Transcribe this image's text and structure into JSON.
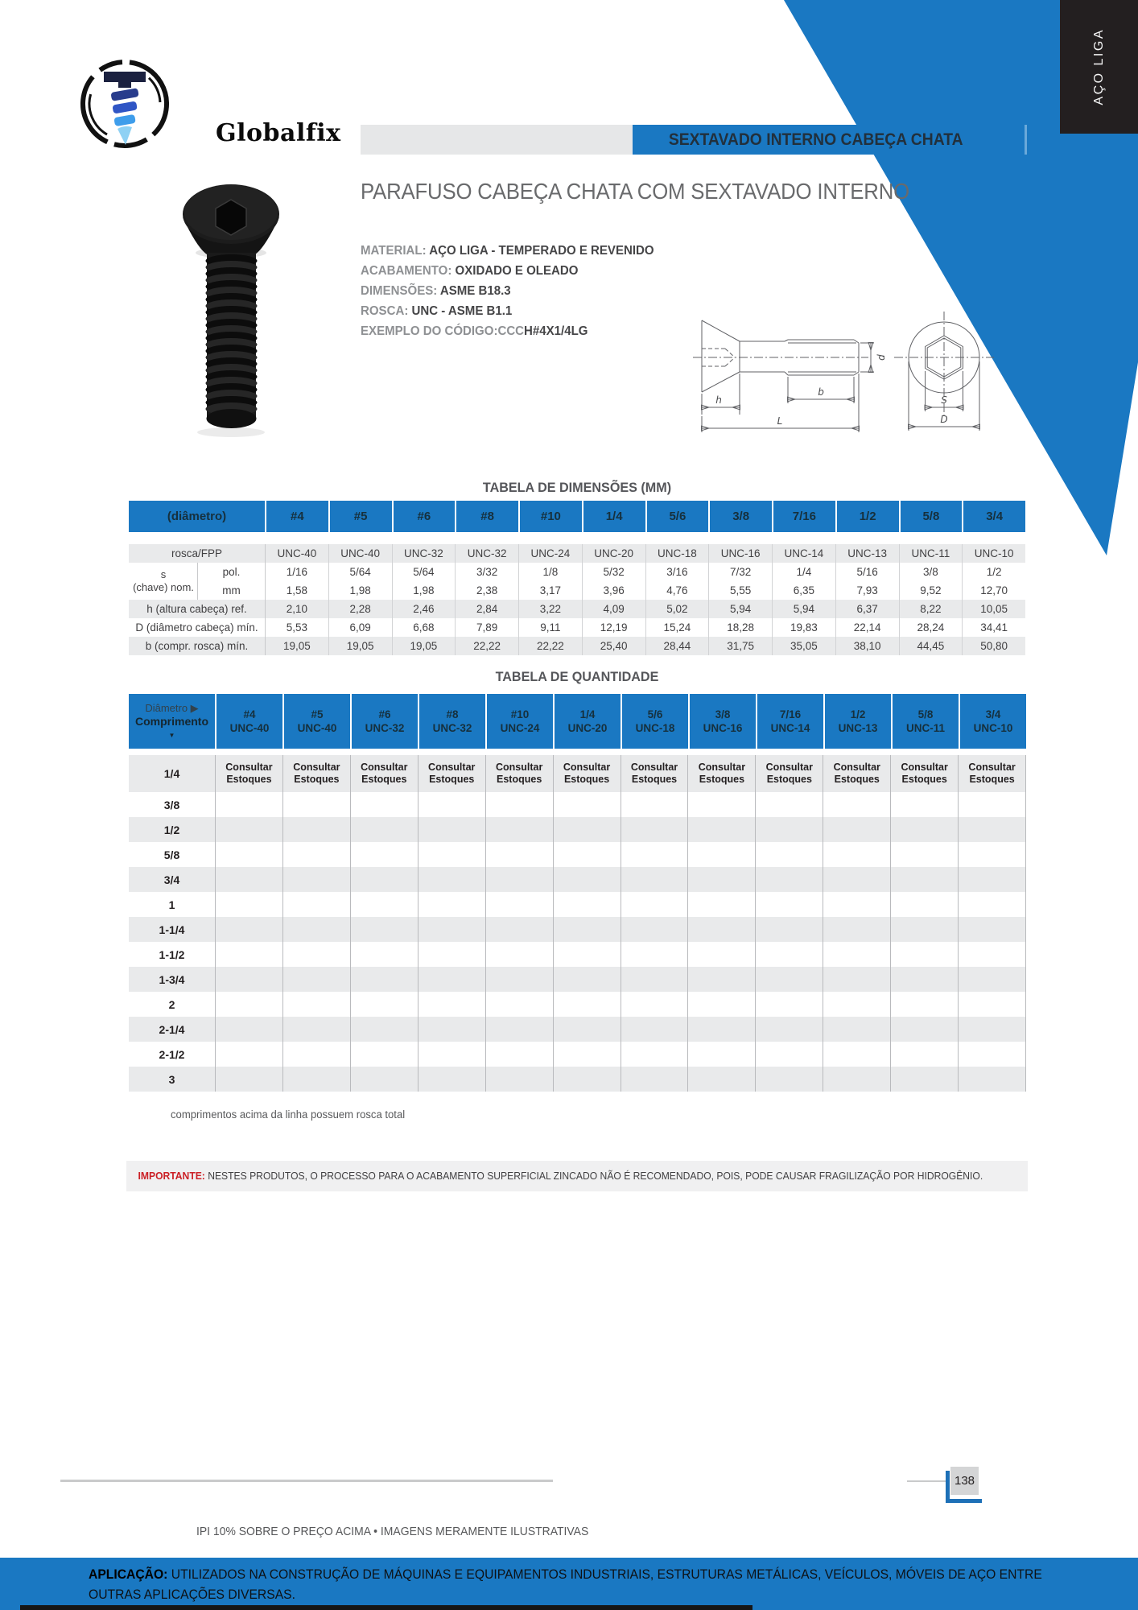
{
  "brand": {
    "name": "Globalfix",
    "tab_label": "AÇO LIGA"
  },
  "header": {
    "category_banner": "SEXTAVADO INTERNO CABEÇA CHATA"
  },
  "product": {
    "title": "PARAFUSO CABEÇA CHATA COM SEXTAVADO INTERNO",
    "specs": [
      {
        "label": "MATERIAL: ",
        "value": "AÇO LIGA - TEMPERADO E REVENIDO"
      },
      {
        "label": "ACABAMENTO: ",
        "value": "OXIDADO E OLEADO"
      },
      {
        "label": "DIMENSÕES: ",
        "value": "ASME B18.3"
      },
      {
        "label": "ROSCA: ",
        "value": "UNC - ASME B1.1"
      },
      {
        "label": "EXEMPLO DO CÓDIGO:CCC",
        "value": "H#4X1/4LG"
      }
    ]
  },
  "drawing": {
    "h": "h",
    "b": "b",
    "L": "L",
    "d": "d",
    "S": "S",
    "D": "D"
  },
  "dimensions_table": {
    "title": "TABELA DE DIMENSÕES (MM)",
    "corner_header": "(diâmetro)",
    "columns": [
      "#4",
      "#5",
      "#6",
      "#8",
      "#10",
      "1/4",
      "5/6",
      "3/8",
      "7/16",
      "1/2",
      "5/8",
      "3/4"
    ],
    "span_label_line1": "s",
    "span_label_line2": "(chave) nom.",
    "rows": [
      {
        "label": "rosca/FPP",
        "kind": "plain",
        "gray": true,
        "values": [
          "UNC-40",
          "UNC-40",
          "UNC-32",
          "UNC-32",
          "UNC-24",
          "UNC-20",
          "UNC-18",
          "UNC-16",
          "UNC-14",
          "UNC-13",
          "UNC-11",
          "UNC-10"
        ]
      },
      {
        "label": "pol.",
        "kind": "sub",
        "gray": false,
        "values": [
          "1/16",
          "5/64",
          "5/64",
          "3/32",
          "1/8",
          "5/32",
          "3/16",
          "7/32",
          "1/4",
          "5/16",
          "3/8",
          "1/2"
        ]
      },
      {
        "label": "mm",
        "kind": "sub",
        "gray": false,
        "values": [
          "1,58",
          "1,98",
          "1,98",
          "2,38",
          "3,17",
          "3,96",
          "4,76",
          "5,55",
          "6,35",
          "7,93",
          "9,52",
          "12,70"
        ]
      },
      {
        "label": "h (altura cabeça) ref.",
        "kind": "plain",
        "gray": true,
        "values": [
          "2,10",
          "2,28",
          "2,46",
          "2,84",
          "3,22",
          "4,09",
          "5,02",
          "5,94",
          "5,94",
          "6,37",
          "8,22",
          "10,05"
        ]
      },
      {
        "label": "D (diâmetro cabeça) mín.",
        "kind": "plain",
        "gray": false,
        "values": [
          "5,53",
          "6,09",
          "6,68",
          "7,89",
          "9,11",
          "12,19",
          "15,24",
          "18,28",
          "19,83",
          "22,14",
          "28,24",
          "34,41"
        ]
      },
      {
        "label": "b (compr. rosca) mín.",
        "kind": "plain",
        "gray": true,
        "values": [
          "19,05",
          "19,05",
          "19,05",
          "22,22",
          "22,22",
          "25,40",
          "28,44",
          "31,75",
          "35,05",
          "38,10",
          "44,45",
          "50,80"
        ]
      }
    ]
  },
  "quantity_table": {
    "title": "TABELA DE QUANTIDADE",
    "corner": {
      "line1": "Diâmetro ▶",
      "line2": "Comprimento",
      "arrow": "▼"
    },
    "columns": [
      {
        "size": "#4",
        "thread": "UNC-40"
      },
      {
        "size": "#5",
        "thread": "UNC-40"
      },
      {
        "size": "#6",
        "thread": "UNC-32"
      },
      {
        "size": "#8",
        "thread": "UNC-32"
      },
      {
        "size": "#10",
        "thread": "UNC-24"
      },
      {
        "size": "1/4",
        "thread": "UNC-20"
      },
      {
        "size": "5/6",
        "thread": "UNC-18"
      },
      {
        "size": "3/8",
        "thread": "UNC-16"
      },
      {
        "size": "7/16",
        "thread": "UNC-14"
      },
      {
        "size": "1/2",
        "thread": "UNC-13"
      },
      {
        "size": "5/8",
        "thread": "UNC-11"
      },
      {
        "size": "3/4",
        "thread": "UNC-10"
      }
    ],
    "row_labels": [
      "1/4",
      "3/8",
      "1/2",
      "5/8",
      "3/4",
      "1",
      "1-1/4",
      "1-1/2",
      "1-3/4",
      "2",
      "2-1/4",
      "2-1/2",
      "3"
    ],
    "stock_cell": {
      "line1": "Consultar",
      "line2": "Estoques"
    }
  },
  "notes": {
    "footnote": "comprimentos acima da linha possuem rosca total",
    "important_label": "IMPORTANTE:",
    "important_text": " NESTES PRODUTOS, O PROCESSO PARA O ACABAMENTO SUPERFICIAL ZINCADO NÃO É RECOMENDADO, POIS, PODE CAUSAR FRAGILIZAÇÃO POR HIDROGÊNIO."
  },
  "footer": {
    "page_number": "138",
    "tax_note": "IPI 10% SOBRE O PREÇO ACIMA • IMAGENS MERAMENTE ILUSTRATIVAS",
    "application_label": "APLICAÇÃO: ",
    "application_text": "UTILIZADOS NA CONSTRUÇÃO DE MÁQUINAS E EQUIPAMENTOS INDUSTRIAIS, ESTRUTURAS METÁLICAS, VEÍCULOS, MÓVEIS DE AÇO ENTRE OUTRAS APLICAÇÕES DIVERSAS."
  },
  "colors": {
    "accent_blue": "#1a78c2",
    "corner_black": "#231f20",
    "row_gray": "#e9eaeb",
    "red": "#cb2026"
  }
}
